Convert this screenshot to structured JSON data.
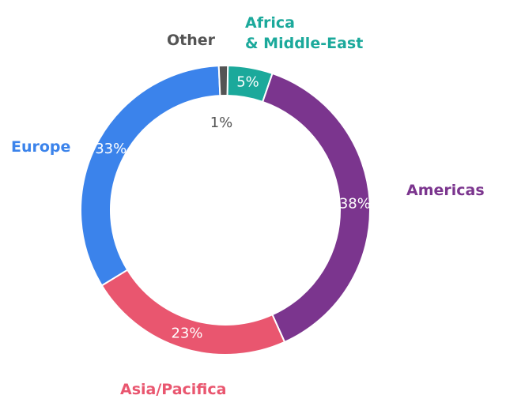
{
  "chart_data": {
    "type": "donut",
    "categories": [
      "Africa\n& Middle-East",
      "Americas",
      "Asia/Pacifica",
      "Europe",
      "Other"
    ],
    "values": [
      5,
      38,
      23,
      33,
      1
    ],
    "value_labels": [
      "5%",
      "38%",
      "23%",
      "33%",
      "1%"
    ],
    "colors": [
      "#1ba99b",
      "#7b358e",
      "#e9566f",
      "#3b83eb",
      "#545454"
    ]
  }
}
